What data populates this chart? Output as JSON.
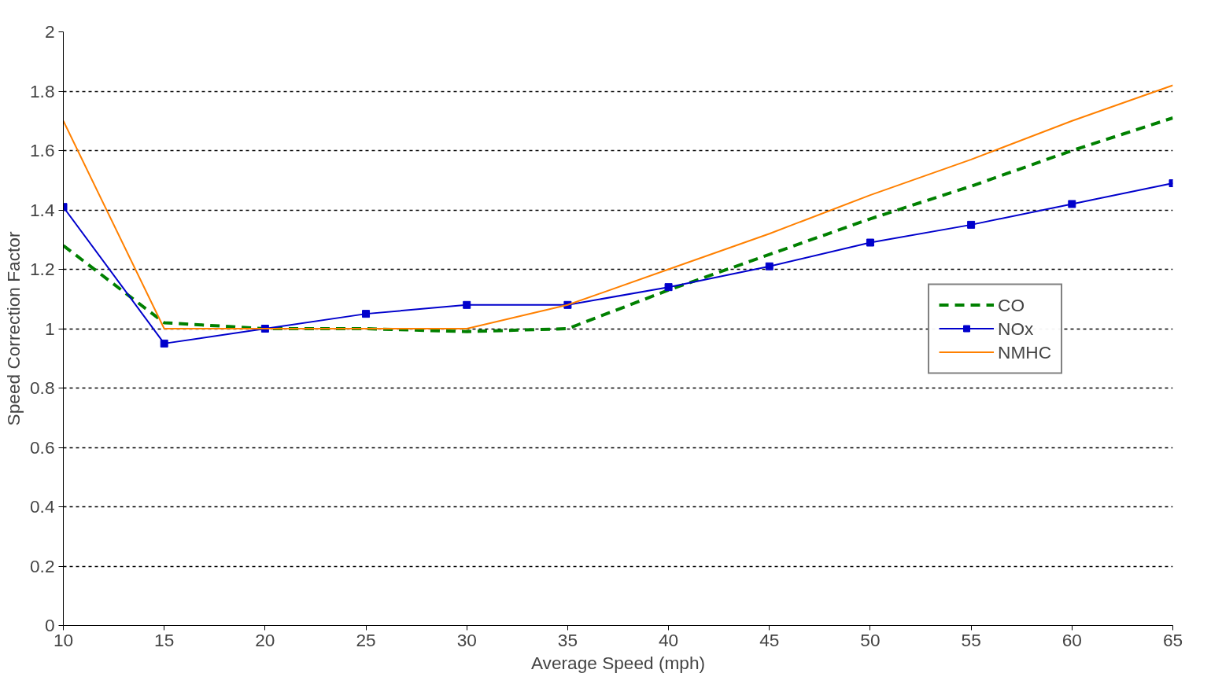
{
  "chart_data": {
    "type": "line",
    "xlabel": "Average Speed (mph)",
    "ylabel": "Speed Correction Factor",
    "x": [
      10,
      15,
      20,
      25,
      30,
      35,
      40,
      45,
      50,
      55,
      60,
      65
    ],
    "xlim": [
      10,
      65
    ],
    "xticks": [
      10,
      15,
      20,
      25,
      30,
      35,
      40,
      45,
      50,
      55,
      60,
      65
    ],
    "ylim": [
      0,
      2
    ],
    "yticks": [
      0,
      0.2,
      0.4,
      0.6,
      0.8,
      1,
      1.2,
      1.4,
      1.6,
      1.8,
      2
    ],
    "grid": "y",
    "legend": "right",
    "series": [
      {
        "name": "CO",
        "color": "#008000",
        "line_style": "dashed",
        "marker": "none",
        "values": [
          1.28,
          1.02,
          1.0,
          1.0,
          0.99,
          1.0,
          1.13,
          1.25,
          1.37,
          1.48,
          1.6,
          1.71
        ]
      },
      {
        "name": "NOx",
        "color": "#0000cc",
        "line_style": "solid",
        "marker": "square",
        "values": [
          1.41,
          0.95,
          1.0,
          1.05,
          1.08,
          1.08,
          1.14,
          1.21,
          1.29,
          1.35,
          1.42,
          1.49
        ]
      },
      {
        "name": "NMHC",
        "color": "#ff8000",
        "line_style": "solid",
        "marker": "none",
        "values": [
          1.7,
          1.0,
          1.0,
          1.0,
          1.0,
          1.08,
          1.2,
          1.32,
          1.45,
          1.57,
          1.7,
          1.82
        ]
      }
    ]
  }
}
